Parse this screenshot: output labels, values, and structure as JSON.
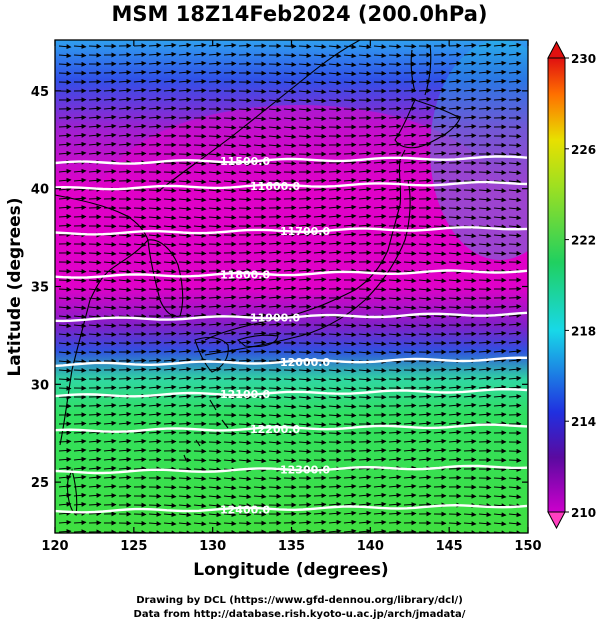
{
  "title": "MSM 18Z14Feb2024 (200.0hPa)",
  "x_axis": {
    "label": "Longitude (degrees)",
    "range": [
      120,
      150
    ],
    "ticks": [
      "120",
      "125",
      "130",
      "135",
      "140",
      "145",
      "150"
    ]
  },
  "y_axis": {
    "label": "Latitude  (degrees)",
    "range": [
      22.4,
      47.6
    ],
    "ticks": [
      "25",
      "30",
      "35",
      "40",
      "45"
    ]
  },
  "colorbar": {
    "range": [
      210,
      230
    ],
    "ticks": [
      "210",
      "214",
      "218",
      "222",
      "226",
      "230"
    ],
    "colors": [
      "#cc00cc",
      "#5a0aa0",
      "#2030e0",
      "#18d8e8",
      "#20d060",
      "#a0e020",
      "#e8e000",
      "#ff7000",
      "#e01010"
    ]
  },
  "contours": [
    {
      "label": "11500.0",
      "lat": 41.6
    },
    {
      "label": "11600.0",
      "lat": 40.3
    },
    {
      "label": "11700.0",
      "lat": 38.0
    },
    {
      "label": "11800.0",
      "lat": 35.8
    },
    {
      "label": "11900.0",
      "lat": 33.6
    },
    {
      "label": "12000.0",
      "lat": 31.3
    },
    {
      "label": "12100.0",
      "lat": 29.7
    },
    {
      "label": "12200.0",
      "lat": 27.9
    },
    {
      "label": "12300.0",
      "lat": 25.8
    },
    {
      "label": "12400.0",
      "lat": 23.8
    }
  ],
  "wind": {
    "direction": "eastward"
  },
  "credits": {
    "line1": "Drawing by DCL (https://www.gfd-dennou.org/library/dcl/)",
    "line2": "Data from http://database.rish.kyoto-u.ac.jp/arch/jmadata/"
  }
}
